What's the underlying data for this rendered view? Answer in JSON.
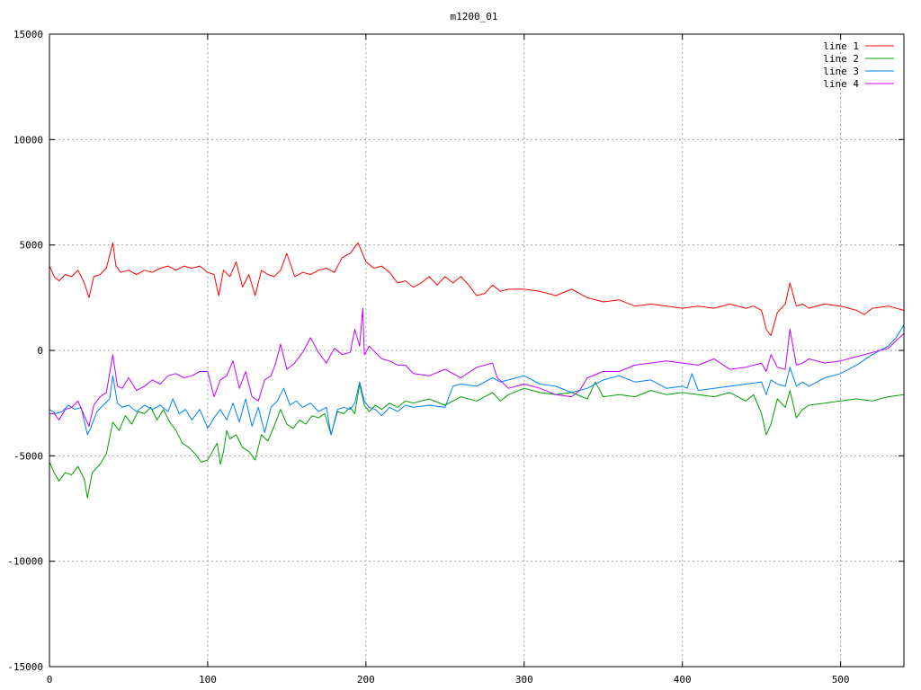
{
  "chart_data": {
    "type": "line",
    "title": "m1200_01",
    "xlabel": "",
    "ylabel": "",
    "xlim": [
      0,
      540
    ],
    "ylim": [
      -15000,
      15000
    ],
    "x_ticks": [
      0,
      100,
      200,
      300,
      400,
      500
    ],
    "y_ticks": [
      -15000,
      -10000,
      -5000,
      0,
      5000,
      10000,
      15000
    ],
    "grid": true,
    "legend_position": "top-right",
    "series": [
      {
        "name": "line 1",
        "color": "#ff0000",
        "x": [
          0,
          3,
          6,
          10,
          14,
          18,
          22,
          25,
          28,
          32,
          36,
          40,
          42,
          45,
          50,
          55,
          60,
          65,
          70,
          75,
          80,
          85,
          90,
          95,
          100,
          104,
          107,
          110,
          114,
          118,
          122,
          126,
          130,
          134,
          138,
          142,
          146,
          150,
          155,
          160,
          165,
          170,
          175,
          180,
          185,
          190,
          195,
          200,
          205,
          210,
          215,
          220,
          225,
          230,
          235,
          240,
          245,
          250,
          255,
          260,
          265,
          270,
          275,
          280,
          285,
          290,
          300,
          310,
          320,
          330,
          340,
          350,
          360,
          370,
          380,
          390,
          400,
          410,
          420,
          430,
          440,
          445,
          450,
          453,
          456,
          460,
          465,
          468,
          472,
          476,
          480,
          490,
          500,
          510,
          515,
          520,
          530,
          540
        ],
        "y": [
          4000,
          3500,
          3300,
          3600,
          3500,
          3800,
          3200,
          2500,
          3500,
          3600,
          3900,
          5100,
          4000,
          3700,
          3800,
          3600,
          3800,
          3700,
          3900,
          4000,
          3800,
          4000,
          3900,
          4000,
          3700,
          3600,
          2600,
          3800,
          3500,
          4200,
          3000,
          3600,
          2600,
          3800,
          3600,
          3500,
          3800,
          4600,
          3500,
          3700,
          3600,
          3800,
          3900,
          3700,
          4400,
          4600,
          5100,
          4200,
          3900,
          4000,
          3700,
          3200,
          3300,
          3000,
          3200,
          3500,
          3100,
          3500,
          3200,
          3500,
          3100,
          2600,
          2700,
          3100,
          2800,
          2900,
          2900,
          2800,
          2600,
          2900,
          2500,
          2300,
          2400,
          2100,
          2200,
          2100,
          2000,
          2100,
          2000,
          2200,
          2000,
          2100,
          1900,
          1000,
          700,
          1800,
          2200,
          3200,
          2100,
          2200,
          2000,
          2200,
          2100,
          1900,
          1700,
          2000,
          2100,
          1900
        ]
      },
      {
        "name": "line 2",
        "color": "#00a000",
        "x": [
          0,
          3,
          6,
          10,
          14,
          18,
          22,
          24,
          27,
          32,
          36,
          40,
          44,
          48,
          52,
          56,
          60,
          64,
          68,
          72,
          76,
          80,
          84,
          88,
          92,
          96,
          100,
          103,
          106,
          108,
          110,
          112,
          114,
          118,
          122,
          126,
          130,
          134,
          138,
          142,
          146,
          150,
          154,
          158,
          162,
          166,
          170,
          174,
          178,
          182,
          186,
          190,
          193,
          196,
          199,
          202,
          206,
          210,
          215,
          220,
          225,
          230,
          240,
          250,
          260,
          270,
          280,
          285,
          290,
          300,
          310,
          320,
          330,
          340,
          345,
          350,
          360,
          370,
          380,
          390,
          400,
          410,
          420,
          430,
          440,
          445,
          450,
          453,
          456,
          460,
          465,
          468,
          472,
          476,
          480,
          490,
          500,
          510,
          520,
          530,
          540
        ],
        "y": [
          -5300,
          -5800,
          -6200,
          -5800,
          -5900,
          -5500,
          -6100,
          -7000,
          -5800,
          -5400,
          -4900,
          -3400,
          -3800,
          -3100,
          -3500,
          -2900,
          -3000,
          -2700,
          -3300,
          -2800,
          -3400,
          -3800,
          -4400,
          -4600,
          -4900,
          -5300,
          -5200,
          -4800,
          -4400,
          -5400,
          -4800,
          -3800,
          -4200,
          -4000,
          -4600,
          -4800,
          -5200,
          -4000,
          -4300,
          -3600,
          -2800,
          -3500,
          -3700,
          -3300,
          -3500,
          -3100,
          -3200,
          -3000,
          -4000,
          -2900,
          -3000,
          -2700,
          -3000,
          -1600,
          -2600,
          -2900,
          -2600,
          -2800,
          -2500,
          -2700,
          -2400,
          -2500,
          -2300,
          -2600,
          -2200,
          -2400,
          -2000,
          -2400,
          -2100,
          -1800,
          -2000,
          -2100,
          -2000,
          -2300,
          -1500,
          -2200,
          -2100,
          -2200,
          -1900,
          -2100,
          -2000,
          -2100,
          -2200,
          -2000,
          -2400,
          -2100,
          -3000,
          -4000,
          -3500,
          -2300,
          -2700,
          -1900,
          -3200,
          -2800,
          -2600,
          -2500,
          -2400,
          -2300,
          -2400,
          -2200,
          -2100
        ]
      },
      {
        "name": "line 3",
        "color": "#0080ff",
        "x": [
          0,
          4,
          8,
          12,
          16,
          20,
          24,
          26,
          30,
          34,
          38,
          40,
          43,
          46,
          50,
          55,
          60,
          65,
          70,
          75,
          78,
          82,
          86,
          90,
          95,
          100,
          104,
          108,
          112,
          116,
          120,
          124,
          128,
          132,
          136,
          140,
          144,
          148,
          152,
          156,
          160,
          165,
          170,
          175,
          178,
          182,
          186,
          190,
          193,
          196,
          199,
          202,
          206,
          210,
          215,
          220,
          225,
          230,
          240,
          250,
          255,
          260,
          270,
          280,
          285,
          290,
          300,
          310,
          320,
          330,
          340,
          350,
          360,
          370,
          380,
          390,
          400,
          403,
          406,
          410,
          420,
          430,
          440,
          450,
          453,
          456,
          460,
          465,
          468,
          472,
          476,
          480,
          490,
          500,
          505,
          510,
          520,
          530,
          535,
          540
        ],
        "y": [
          -2800,
          -3000,
          -2900,
          -2600,
          -2800,
          -2700,
          -4000,
          -3700,
          -2900,
          -2600,
          -2300,
          -1200,
          -2500,
          -2700,
          -2600,
          -2900,
          -2600,
          -2800,
          -2600,
          -2900,
          -2300,
          -3000,
          -2800,
          -3300,
          -2800,
          -3700,
          -3200,
          -2800,
          -3300,
          -2500,
          -3400,
          -2300,
          -3600,
          -2700,
          -3900,
          -2700,
          -2400,
          -1800,
          -2600,
          -2400,
          -2700,
          -2500,
          -2900,
          -2700,
          -4000,
          -2800,
          -2700,
          -2800,
          -2500,
          -1500,
          -2400,
          -2700,
          -2800,
          -3100,
          -2700,
          -2900,
          -2600,
          -2700,
          -2600,
          -2700,
          -1700,
          -1600,
          -1700,
          -1300,
          -1500,
          -1400,
          -1200,
          -1600,
          -1700,
          -2000,
          -1800,
          -1400,
          -1200,
          -1500,
          -1400,
          -1800,
          -1700,
          -1800,
          -1100,
          -1900,
          -1800,
          -1700,
          -1600,
          -1500,
          -2100,
          -1400,
          -1600,
          -1700,
          -800,
          -1700,
          -1500,
          -1700,
          -1300,
          -1100,
          -900,
          -700,
          -200,
          200,
          600,
          1200
        ]
      },
      {
        "name": "line 4",
        "color": "#c000ff",
        "x": [
          0,
          3,
          6,
          10,
          14,
          18,
          22,
          25,
          28,
          32,
          36,
          40,
          43,
          46,
          50,
          55,
          60,
          65,
          70,
          75,
          80,
          85,
          90,
          95,
          100,
          104,
          108,
          112,
          116,
          120,
          124,
          128,
          132,
          136,
          140,
          143,
          146,
          150,
          155,
          160,
          165,
          170,
          175,
          180,
          185,
          190,
          193,
          196,
          198,
          199,
          200,
          202,
          206,
          210,
          215,
          220,
          225,
          230,
          240,
          250,
          260,
          270,
          280,
          283,
          286,
          290,
          300,
          310,
          320,
          330,
          335,
          340,
          350,
          360,
          370,
          380,
          390,
          400,
          410,
          420,
          430,
          440,
          450,
          453,
          456,
          460,
          465,
          468,
          472,
          476,
          480,
          490,
          500,
          510,
          520,
          530,
          540
        ],
        "y": [
          -3000,
          -3000,
          -3300,
          -2800,
          -2700,
          -2400,
          -3100,
          -3600,
          -2600,
          -2200,
          -2000,
          -200,
          -1700,
          -1800,
          -1300,
          -1900,
          -1700,
          -1400,
          -1600,
          -1200,
          -1100,
          -1300,
          -1200,
          -1000,
          -1000,
          -2200,
          -1400,
          -1200,
          -500,
          -1800,
          -1000,
          -2200,
          -2400,
          -1400,
          -1200,
          -600,
          300,
          -900,
          -600,
          -100,
          600,
          -100,
          -600,
          100,
          -200,
          -100,
          1000,
          200,
          2000,
          -200,
          -100,
          200,
          -100,
          -400,
          -500,
          -700,
          -700,
          -1100,
          -1200,
          -900,
          -1300,
          -800,
          -600,
          -1300,
          -1500,
          -1800,
          -1600,
          -1800,
          -2100,
          -2200,
          -1900,
          -1300,
          -1000,
          -1000,
          -700,
          -600,
          -500,
          -600,
          -700,
          -400,
          -900,
          -800,
          -600,
          -1000,
          -200,
          -800,
          -900,
          1000,
          -700,
          -600,
          -400,
          -600,
          -500,
          -300,
          -100,
          100,
          800
        ]
      }
    ]
  }
}
